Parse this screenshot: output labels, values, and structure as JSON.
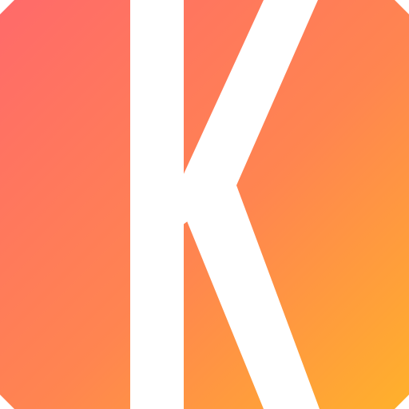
{
  "icon": {
    "name": "k-logo-icon",
    "letter": "K",
    "colors": {
      "gradient_start": "#ff6a6a",
      "gradient_mid": "#ff8550",
      "gradient_end": "#ffb12b",
      "glyph": "#ffffff"
    }
  }
}
